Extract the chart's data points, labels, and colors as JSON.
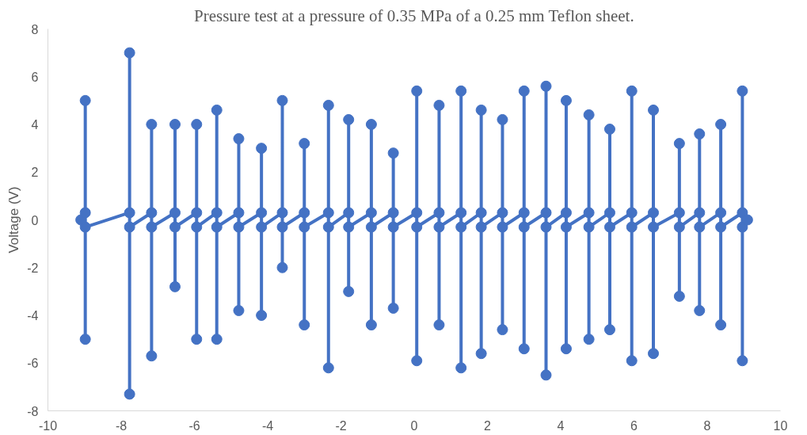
{
  "chart_data": {
    "type": "line",
    "title": "Pressure test at a pressure of 0.35 MPa of a 0.25 mm Teflon sheet.",
    "ylabel": "Voltage (V)",
    "xlim": [
      -10,
      10
    ],
    "xticks": [
      -10,
      -8,
      -6,
      -4,
      -2,
      0,
      2,
      4,
      6,
      8,
      10
    ],
    "ylim": [
      -8,
      8
    ],
    "yticks": [
      -8,
      -6,
      -4,
      -2,
      0,
      2,
      4,
      6,
      8
    ],
    "grid": false,
    "marker": "circle",
    "line_style": "solid",
    "series": [
      {
        "color": "#4472c4",
        "x": [
          -9.1,
          -8.98,
          -8.98,
          -8.98,
          -8.98,
          -7.77,
          -7.77,
          -7.77,
          -7.77,
          -7.17,
          -7.17,
          -7.17,
          -7.17,
          -6.53,
          -6.53,
          -6.53,
          -6.53,
          -5.94,
          -5.94,
          -5.94,
          -5.94,
          -5.39,
          -5.39,
          -5.39,
          -5.39,
          -4.79,
          -4.79,
          -4.79,
          -4.79,
          -4.17,
          -4.17,
          -4.17,
          -4.17,
          -3.6,
          -3.6,
          -3.6,
          -3.6,
          -3.0,
          -3.0,
          -3.0,
          -3.0,
          -2.34,
          -2.34,
          -2.34,
          -2.34,
          -1.79,
          -1.79,
          -1.79,
          -1.79,
          -1.17,
          -1.17,
          -1.17,
          -1.17,
          -0.57,
          -0.57,
          -0.57,
          -0.57,
          0.07,
          0.07,
          0.07,
          0.07,
          0.68,
          0.68,
          0.68,
          0.68,
          1.28,
          1.28,
          1.28,
          1.28,
          1.83,
          1.83,
          1.83,
          1.83,
          2.41,
          2.41,
          2.41,
          2.41,
          3.0,
          3.0,
          3.0,
          3.0,
          3.6,
          3.6,
          3.6,
          3.6,
          4.15,
          4.15,
          4.15,
          4.15,
          4.77,
          4.77,
          4.77,
          4.77,
          5.34,
          5.34,
          5.34,
          5.34,
          5.94,
          5.94,
          5.94,
          5.94,
          6.53,
          6.53,
          6.53,
          6.53,
          7.24,
          7.24,
          7.24,
          7.24,
          7.79,
          7.79,
          7.79,
          7.79,
          8.37,
          8.37,
          8.37,
          8.37,
          8.96,
          8.96,
          8.96,
          8.96,
          9.1
        ],
        "values": [
          0.0,
          0.3,
          5.0,
          -5.0,
          -0.3,
          0.3,
          7.0,
          -7.3,
          -0.3,
          0.3,
          4.0,
          -5.7,
          -0.3,
          0.3,
          4.0,
          -2.8,
          -0.3,
          0.3,
          4.0,
          -5.0,
          -0.3,
          0.3,
          4.6,
          -5.0,
          -0.3,
          0.3,
          3.4,
          -3.8,
          -0.3,
          0.3,
          3.0,
          -4.0,
          -0.3,
          0.3,
          5.0,
          -2.0,
          -0.3,
          0.3,
          3.2,
          -4.4,
          -0.3,
          0.3,
          4.8,
          -6.2,
          -0.3,
          0.3,
          4.2,
          -3.0,
          -0.3,
          0.3,
          4.0,
          -4.4,
          -0.3,
          0.3,
          2.8,
          -3.7,
          -0.3,
          0.3,
          5.4,
          -5.9,
          -0.3,
          0.3,
          4.8,
          -4.4,
          -0.3,
          0.3,
          5.4,
          -6.2,
          -0.3,
          0.3,
          4.6,
          -5.6,
          -0.3,
          0.3,
          4.2,
          -4.6,
          -0.3,
          0.3,
          5.4,
          -5.4,
          -0.3,
          0.3,
          5.6,
          -6.5,
          -0.3,
          0.3,
          5.0,
          -5.4,
          -0.3,
          0.3,
          4.4,
          -5.0,
          -0.3,
          0.3,
          3.8,
          -4.6,
          -0.3,
          0.3,
          5.4,
          -5.9,
          -0.3,
          0.3,
          4.6,
          -5.6,
          -0.3,
          0.3,
          3.2,
          -3.2,
          -0.3,
          0.3,
          3.6,
          -3.8,
          -0.3,
          0.3,
          4.0,
          -4.4,
          -0.3,
          0.3,
          5.4,
          -5.9,
          -0.3,
          0.0
        ]
      }
    ]
  }
}
